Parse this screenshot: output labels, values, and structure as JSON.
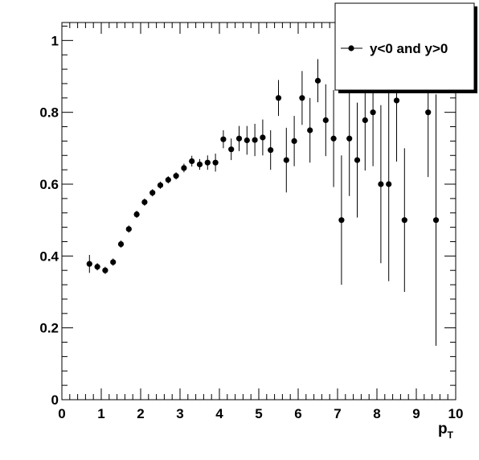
{
  "chart_data": {
    "type": "scatter",
    "xlabel_main": "p",
    "xlabel_sub": "T",
    "ylabel": "",
    "xlim": [
      0,
      10
    ],
    "ylim": [
      0,
      1.05
    ],
    "x_ticks": [
      "0",
      "1",
      "2",
      "3",
      "4",
      "5",
      "6",
      "7",
      "8",
      "9",
      "10"
    ],
    "y_ticks": [
      "0",
      "0.2",
      "0.4",
      "0.6",
      "0.8",
      "1"
    ],
    "grid": false,
    "legend_position": "top-right",
    "series": [
      {
        "name": "y<0 and y>0",
        "color": "#000000",
        "marker": "circle",
        "x": [
          0.7,
          0.9,
          1.1,
          1.3,
          1.5,
          1.7,
          1.9,
          2.1,
          2.3,
          2.5,
          2.7,
          2.9,
          3.1,
          3.3,
          3.5,
          3.7,
          3.9,
          4.1,
          4.3,
          4.5,
          4.7,
          4.9,
          5.1,
          5.3,
          5.5,
          5.7,
          5.9,
          6.1,
          6.3,
          6.5,
          6.7,
          6.9,
          7.1,
          7.3,
          7.5,
          7.7,
          7.9,
          8.1,
          8.3,
          8.5,
          8.7,
          9.3,
          9.5
        ],
        "y": [
          0.378,
          0.37,
          0.36,
          0.383,
          0.433,
          0.475,
          0.516,
          0.55,
          0.576,
          0.597,
          0.612,
          0.623,
          0.645,
          0.664,
          0.655,
          0.66,
          0.66,
          0.725,
          0.697,
          0.727,
          0.722,
          0.723,
          0.73,
          0.695,
          0.84,
          0.667,
          0.72,
          0.84,
          0.75,
          0.888,
          0.778,
          0.727,
          0.5,
          0.727,
          0.667,
          0.778,
          0.8,
          0.6,
          0.6,
          0.833,
          0.5,
          0.8,
          0.5
        ],
        "yerr": [
          0.025,
          0.01,
          0.01,
          0.01,
          0.01,
          0.01,
          0.01,
          0.01,
          0.01,
          0.01,
          0.01,
          0.01,
          0.012,
          0.015,
          0.015,
          0.02,
          0.025,
          0.025,
          0.03,
          0.035,
          0.04,
          0.045,
          0.05,
          0.055,
          0.05,
          0.09,
          0.07,
          0.075,
          0.09,
          0.06,
          0.1,
          0.135,
          0.18,
          0.16,
          0.16,
          0.14,
          0.15,
          0.22,
          0.27,
          0.17,
          0.2,
          0.18,
          0.35
        ]
      }
    ]
  }
}
